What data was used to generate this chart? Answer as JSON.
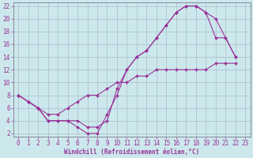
{
  "xlabel": "Windchill (Refroidissement éolien,°C)",
  "bg_color": "#cce8ec",
  "grid_color": "#aabccc",
  "line_color": "#993399",
  "spine_color": "#888899",
  "xlim": [
    -0.5,
    23.5
  ],
  "ylim": [
    1.5,
    22.5
  ],
  "xticks": [
    0,
    1,
    2,
    3,
    4,
    5,
    6,
    7,
    8,
    9,
    10,
    11,
    12,
    13,
    14,
    15,
    16,
    17,
    18,
    19,
    20,
    21,
    22,
    23
  ],
  "yticks": [
    2,
    4,
    6,
    8,
    10,
    12,
    14,
    16,
    18,
    20,
    22
  ],
  "line1_x": [
    0,
    1,
    2,
    3,
    4,
    5,
    6,
    7,
    8,
    9,
    10,
    11,
    12,
    13,
    14,
    15,
    16,
    17,
    18,
    19,
    20,
    21,
    22
  ],
  "line1_y": [
    8,
    7,
    6,
    4,
    4,
    4,
    3,
    2,
    2,
    5,
    8,
    12,
    14,
    15,
    17,
    19,
    21,
    22,
    22,
    21,
    20,
    17,
    14
  ],
  "line2_x": [
    0,
    1,
    2,
    3,
    4,
    5,
    6,
    7,
    8,
    9,
    10,
    11,
    12,
    13,
    14,
    15,
    16,
    17,
    18,
    19,
    20,
    21,
    22
  ],
  "line2_y": [
    8,
    7,
    6,
    4,
    4,
    4,
    4,
    3,
    3,
    4,
    9,
    12,
    14,
    15,
    17,
    19,
    21,
    22,
    22,
    21,
    17,
    17,
    14
  ],
  "line3_x": [
    0,
    1,
    2,
    3,
    4,
    5,
    6,
    7,
    8,
    9,
    10,
    11,
    12,
    13,
    14,
    15,
    16,
    17,
    18,
    19,
    20,
    21,
    22
  ],
  "line3_y": [
    8,
    7,
    6,
    5,
    5,
    6,
    7,
    8,
    8,
    9,
    10,
    10,
    11,
    11,
    12,
    12,
    12,
    12,
    12,
    12,
    13,
    13,
    13
  ],
  "tick_fontsize": 5.5,
  "xlabel_fontsize": 5.5,
  "marker_size": 2.0,
  "line_width": 0.8
}
